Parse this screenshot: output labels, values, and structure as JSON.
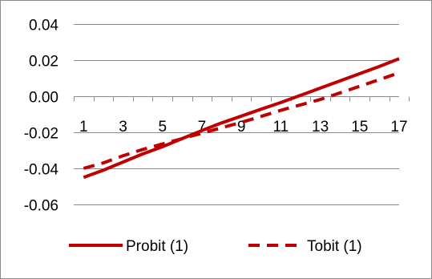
{
  "chart_data": {
    "type": "line",
    "x": [
      1,
      2,
      3,
      4,
      5,
      6,
      7,
      8,
      9,
      10,
      11,
      12,
      13,
      14,
      15,
      16,
      17
    ],
    "x_tick_labels": [
      "1",
      "3",
      "5",
      "7",
      "9",
      "11",
      "13",
      "15",
      "17"
    ],
    "y_tick_labels": [
      "0.04",
      "0.02",
      "0.00",
      "-0.02",
      "-0.04",
      "-0.06"
    ],
    "ylim": [
      -0.06,
      0.04
    ],
    "y_ticks": [
      0.04,
      0.02,
      0.0,
      -0.02,
      -0.04,
      -0.06
    ],
    "grid": true,
    "legend_position": "bottom",
    "series": [
      {
        "name": "Probit (1)",
        "style": "solid",
        "color": "#c00000",
        "values": [
          -0.045,
          -0.041,
          -0.0365,
          -0.032,
          -0.028,
          -0.0235,
          -0.019,
          -0.0148,
          -0.011,
          -0.0072,
          -0.0035,
          0.0005,
          0.0045,
          0.0085,
          0.0125,
          0.0165,
          0.0208
        ]
      },
      {
        "name": "Tobit (1)",
        "style": "dashed",
        "color": "#c00000",
        "values": [
          -0.04,
          -0.037,
          -0.033,
          -0.0295,
          -0.0265,
          -0.0235,
          -0.0205,
          -0.0175,
          -0.0145,
          -0.0112,
          -0.0078,
          -0.0048,
          -0.0018,
          0.0018,
          0.0055,
          0.0092,
          0.013
        ]
      }
    ]
  }
}
